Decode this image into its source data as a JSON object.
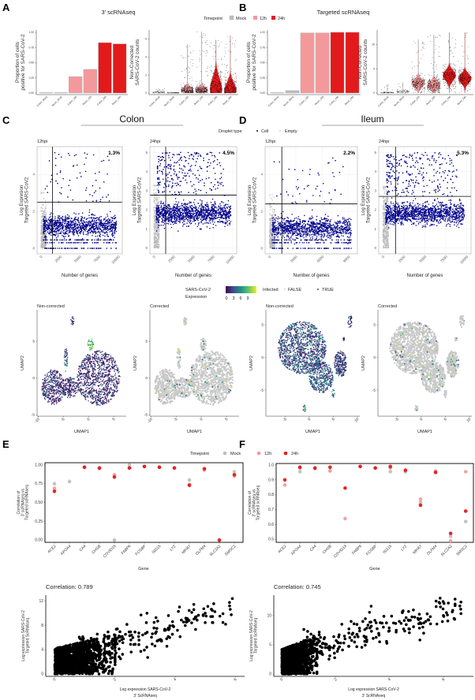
{
  "panel_labels": {
    "a": "A",
    "b": "B",
    "c": "C",
    "d": "D",
    "e": "E",
    "f": "F"
  },
  "colors": {
    "mock": "#bdbdbd",
    "h12": "#f4999b",
    "h24": "#e31a1c",
    "cell": "#00008b",
    "empty": "#bbbbbb",
    "umap_gray": "#c8c8c8",
    "black": "#000000"
  },
  "timepoint_legend": {
    "title": "Timepoint",
    "items": [
      "Mock",
      "12h",
      "24h"
    ]
  },
  "droplet_legend": {
    "title": "Droplet type",
    "items": [
      "Cell",
      "Empty"
    ]
  },
  "expression_legend": {
    "title_line1": "SARS-CoV-2",
    "title_line2": "Expression",
    "ticks": [
      "0",
      "3",
      "6",
      "9"
    ]
  },
  "infected_legend": {
    "title": "Infected",
    "items": [
      "FALSE",
      "TRUE"
    ]
  },
  "section_titles": {
    "colon": "Colon",
    "ileum": "Ileum"
  },
  "chart_data": [
    {
      "id": "A-bar",
      "type": "bar",
      "title": "3' scRNAseq",
      "ylabel": [
        "Proportion of cells",
        "positive for SARS-CoV-2"
      ],
      "ylim": [
        0,
        1
      ],
      "yticks": [
        "0.00",
        "0.25",
        "0.50",
        "0.75",
        "1.00"
      ],
      "categories": [
        "Colon_Mock",
        "Ileum_Mock",
        "Colon_12h",
        "Ileum_12h",
        "Colon_24h",
        "Ileum_24h"
      ],
      "timepoints": [
        "mock",
        "mock",
        "h12",
        "h12",
        "h24",
        "h24"
      ],
      "values": [
        0.005,
        0.005,
        0.27,
        0.39,
        0.83,
        0.81
      ]
    },
    {
      "id": "A-violin",
      "type": "violin",
      "ylabel": [
        "Non-Corrected",
        "SARS-CoV-2 counts"
      ],
      "ylim": [
        0,
        7
      ],
      "yticks": [
        0,
        2,
        4,
        6
      ],
      "categories": [
        "Colon_Mock",
        "Ileum_Mock",
        "Colon_12h",
        "Ileum_12h",
        "Colon_24h",
        "Ileum_24h"
      ],
      "timepoints": [
        "mock",
        "mock",
        "h12",
        "h12",
        "h24",
        "h24"
      ],
      "median": [
        0,
        0,
        0.3,
        0.3,
        0.4,
        0.3
      ],
      "spread": [
        0.1,
        0.02,
        0.3,
        0.3,
        1.2,
        0.8
      ],
      "max": [
        0.5,
        0.1,
        5.4,
        6.8,
        5.9,
        6.4
      ]
    },
    {
      "id": "B-bar",
      "type": "bar",
      "title": "Targeted scRNAseq",
      "ylabel": [
        "Proportion of cells",
        "positive for SARS-CoV-2"
      ],
      "ylim": [
        0,
        1
      ],
      "yticks": [
        "0.00",
        "0.25",
        "0.50",
        "0.75",
        "1.00"
      ],
      "categories": [
        "Colon_Mock",
        "Ileum_Mock",
        "Colon_12h",
        "Ileum_12h",
        "Colon_24h",
        "Ileum_24h"
      ],
      "timepoints": [
        "mock",
        "mock",
        "h12",
        "h12",
        "h24",
        "h24"
      ],
      "values": [
        0.005,
        0.04,
        0.99,
        0.99,
        1.0,
        1.0
      ]
    },
    {
      "id": "B-violin",
      "type": "violin",
      "ylabel": [
        "Non-Corrected",
        "SARS-CoV-2 counts"
      ],
      "ylim": [
        0,
        13
      ],
      "yticks": [
        0,
        5,
        10
      ],
      "categories": [
        "Colon_Mock",
        "Ileum_Mock",
        "Colon_12h",
        "Ileum_12h",
        "Colon_24h",
        "Ileum_24h"
      ],
      "timepoints": [
        "mock",
        "mock",
        "h12",
        "h12",
        "h24",
        "h24"
      ],
      "median": [
        0,
        0.2,
        2.0,
        1.6,
        3.6,
        3.0
      ],
      "spread": [
        0.1,
        0.2,
        0.8,
        0.8,
        1.0,
        0.9
      ],
      "max": [
        1.8,
        2.2,
        11,
        12,
        12.5,
        12.5
      ]
    },
    {
      "id": "C-12hpi",
      "type": "scatter",
      "title": "12hpi",
      "xlabel": "Number of genes",
      "ylabel": [
        "Log Expresion",
        "Targeted SARS-CoV2"
      ],
      "xlim": [
        -500,
        10500
      ],
      "ylim": [
        -0.3,
        5.5
      ],
      "xticks": [
        0,
        2500,
        5000,
        7500,
        10000
      ],
      "yticks": [
        0,
        2,
        4
      ],
      "vline": 1500,
      "hline": 2.5,
      "percent_label": "1.3%",
      "cell_y_center": 1.2,
      "high_cells": 70
    },
    {
      "id": "C-24hpi",
      "type": "scatter",
      "title": "24hpi",
      "xlabel": "Number of genes",
      "ylabel": [
        "Log Expresion",
        "Targeted SARS-CoV2"
      ],
      "xlim": [
        -500,
        10500
      ],
      "ylim": [
        -0.3,
        5.3
      ],
      "xticks": [
        0,
        2500,
        5000,
        7500,
        10000
      ],
      "yticks": [
        0,
        1,
        2,
        3,
        4,
        5
      ],
      "vline": 1500,
      "hline": 2.77,
      "percent_label": "4.5%",
      "cell_y_center": 1.8,
      "high_cells": 260
    },
    {
      "id": "D-12hpi",
      "type": "scatter",
      "title": "12hpi",
      "xlabel": "Number of genes",
      "ylabel": [
        "Log Expresion",
        "Targeted SARS-CoV2"
      ],
      "xlim": [
        -500,
        10000
      ],
      "ylim": [
        -0.3,
        5.5
      ],
      "xticks": [
        0,
        3000,
        6000,
        9000
      ],
      "yticks": [
        0,
        2,
        4
      ],
      "vline": 1400,
      "hline": 2.4,
      "percent_label": "2.2%",
      "cell_y_center": 1.1,
      "high_cells": 50
    },
    {
      "id": "D-24hpi",
      "type": "scatter",
      "title": "24hpi",
      "xlabel": "Number of genes",
      "ylabel": [
        "Log Expresion",
        "Targeted SARS-CoV2"
      ],
      "xlim": [
        -500,
        10500
      ],
      "ylim": [
        -0.3,
        5.3
      ],
      "xticks": [
        0,
        2500,
        5000,
        7500,
        10000
      ],
      "yticks": [
        0,
        1,
        2,
        3,
        4,
        5
      ],
      "vline": 1500,
      "hline": 2.7,
      "percent_label": "5.3%",
      "cell_y_center": 1.8,
      "high_cells": 280
    },
    {
      "id": "C-umap-noncorrected",
      "type": "scatter",
      "title": "Non-corrected",
      "xlabel": "UMAP1",
      "ylabel": "UMAP2",
      "xlim": [
        -10.2,
        7.5
      ],
      "ylim": [
        -5.2,
        9.3
      ],
      "xticks": [
        -10,
        -5,
        0,
        5
      ],
      "yticks": [
        -5,
        0,
        5
      ],
      "mode": "noncorrected",
      "clusters": [
        {
          "cx": 2,
          "cy": 0,
          "rx": 4.3,
          "ry": 3.7,
          "n": 900,
          "expr": 1.5
        },
        {
          "cx": -7,
          "cy": -1.2,
          "rx": 2.3,
          "ry": 2.4,
          "n": 380,
          "expr": 1.5
        },
        {
          "cx": -3.6,
          "cy": -1.3,
          "rx": 1.8,
          "ry": 1.4,
          "n": 180,
          "expr": 1.5
        },
        {
          "cx": -4.5,
          "cy": 2.5,
          "rx": 0.35,
          "ry": 1.6,
          "n": 40,
          "expr": 2.5
        },
        {
          "cx": -3.2,
          "cy": 7.8,
          "rx": 0.3,
          "ry": 0.6,
          "n": 20,
          "expr": 2.5
        },
        {
          "cx": 0.4,
          "cy": 4.6,
          "rx": 0.6,
          "ry": 0.8,
          "n": 50,
          "expr": 7
        }
      ]
    },
    {
      "id": "C-umap-corrected",
      "type": "scatter",
      "title": "Corrected",
      "xlabel": "UMAP1",
      "ylabel": "UMAP2",
      "xlim": [
        -10.2,
        7.5
      ],
      "ylim": [
        -5.2,
        9.3
      ],
      "xticks": [
        -10,
        -5,
        0,
        5
      ],
      "yticks": [
        -5,
        0,
        5
      ],
      "mode": "corrected",
      "infected_points": 70,
      "clusters": [
        {
          "cx": 2,
          "cy": 0,
          "rx": 4.3,
          "ry": 3.7,
          "n": 900,
          "expr": 1.5
        },
        {
          "cx": -7,
          "cy": -1.2,
          "rx": 2.3,
          "ry": 2.4,
          "n": 380,
          "expr": 1.5
        },
        {
          "cx": -3.6,
          "cy": -1.3,
          "rx": 1.8,
          "ry": 1.4,
          "n": 180,
          "expr": 1.5
        },
        {
          "cx": -4.5,
          "cy": 2.5,
          "rx": 0.35,
          "ry": 1.6,
          "n": 40,
          "expr": 2.5
        },
        {
          "cx": -3.2,
          "cy": 7.8,
          "rx": 0.3,
          "ry": 0.6,
          "n": 20,
          "expr": 2.5
        },
        {
          "cx": 0.4,
          "cy": 4.6,
          "rx": 0.6,
          "ry": 0.8,
          "n": 50,
          "expr": 7
        }
      ]
    },
    {
      "id": "D-umap-noncorrected",
      "type": "scatter",
      "title": "Non-corrected",
      "xlabel": "UMAP1",
      "ylabel": "UMAP2",
      "xlim": [
        -9,
        10.5
      ],
      "ylim": [
        -9,
        7.3
      ],
      "xticks": [
        -5,
        0,
        5,
        10
      ],
      "yticks": [
        -5,
        0,
        5
      ],
      "mode": "noncorrected",
      "clusters": [
        {
          "cx": -1.5,
          "cy": 1.5,
          "rx": 5,
          "ry": 4,
          "n": 1200,
          "expr": 2.5
        },
        {
          "cx": 2.5,
          "cy": -3,
          "rx": 2.5,
          "ry": 2.4,
          "n": 420,
          "expr": 3
        },
        {
          "cx": 6.5,
          "cy": -1,
          "rx": 1.3,
          "ry": 2,
          "n": 250,
          "expr": 2
        },
        {
          "cx": 8.5,
          "cy": 5.5,
          "rx": 0.5,
          "ry": 1,
          "n": 25,
          "expr": 2
        },
        {
          "cx": 7.2,
          "cy": 2.8,
          "rx": 0.2,
          "ry": 0.3,
          "n": 10,
          "expr": 1
        },
        {
          "cx": 5,
          "cy": -5.5,
          "rx": 0.3,
          "ry": 0.6,
          "n": 15,
          "expr": 4
        },
        {
          "cx": -1,
          "cy": -7.8,
          "rx": 0.3,
          "ry": 0.5,
          "n": 15,
          "expr": 4
        }
      ]
    },
    {
      "id": "D-umap-corrected",
      "type": "scatter",
      "title": "Corrected",
      "xlabel": "UMAP1",
      "ylabel": "UMAP2",
      "xlim": [
        -9,
        10.5
      ],
      "ylim": [
        -9,
        7.3
      ],
      "xticks": [
        -5,
        0,
        5,
        10
      ],
      "yticks": [
        -5,
        0,
        5
      ],
      "mode": "corrected",
      "infected_points": 80,
      "clusters": [
        {
          "cx": -1.5,
          "cy": 1.5,
          "rx": 5,
          "ry": 4,
          "n": 1200,
          "expr": 2.5
        },
        {
          "cx": 2.5,
          "cy": -3,
          "rx": 2.5,
          "ry": 2.4,
          "n": 420,
          "expr": 3
        },
        {
          "cx": 6.5,
          "cy": -1,
          "rx": 1.3,
          "ry": 2,
          "n": 250,
          "expr": 2
        },
        {
          "cx": 8.5,
          "cy": 5.5,
          "rx": 0.5,
          "ry": 1,
          "n": 25,
          "expr": 2
        },
        {
          "cx": 7.2,
          "cy": 2.8,
          "rx": 0.2,
          "ry": 0.3,
          "n": 10,
          "expr": 1
        },
        {
          "cx": 5,
          "cy": -5.5,
          "rx": 0.3,
          "ry": 0.6,
          "n": 15,
          "expr": 4
        },
        {
          "cx": -1,
          "cy": -7.8,
          "rx": 0.3,
          "ry": 0.5,
          "n": 15,
          "expr": 4
        }
      ]
    },
    {
      "id": "E-dot",
      "type": "scatter",
      "xlabel": "Gene",
      "ylabel": [
        "Correlation of",
        "3' scRNAseq vs",
        "Targeted scRNAseq"
      ],
      "ylim": [
        -0.03,
        1.03
      ],
      "yticks": [
        "0.00",
        "0.25",
        "0.50",
        "0.75",
        "1.00"
      ],
      "ytick_values": [
        0,
        0.25,
        0.5,
        0.75,
        1.0
      ],
      "categories": [
        "ACE2",
        "APOA4",
        "CA4",
        "CHGB",
        "COVID19",
        "FABP6",
        "FCGBP",
        "ISG15",
        "LYZ",
        "MKI67",
        "OLFM4",
        "SLC2A2",
        "SMOC2"
      ],
      "series": [
        {
          "name": "Mock",
          "color_key": "mock",
          "values": [
            0.75,
            0.78,
            null,
            null,
            0.0,
            1.0,
            null,
            null,
            null,
            0.8,
            null,
            null,
            0.91
          ]
        },
        {
          "name": "12h",
          "color_key": "h12",
          "values": [
            0.69,
            null,
            0.97,
            0.95,
            0.87,
            0.96,
            0.98,
            0.97,
            0.96,
            0.74,
            0.93,
            null,
            0.85
          ]
        },
        {
          "name": "24h",
          "color_key": "h24",
          "values": [
            0.65,
            null,
            0.97,
            0.96,
            0.84,
            0.96,
            0.98,
            0.97,
            0.96,
            0.73,
            0.95,
            0.0,
            0.87
          ]
        }
      ]
    },
    {
      "id": "F-dot",
      "type": "scatter",
      "xlabel": "Gene",
      "ylabel": [
        "Correlation of",
        "3' scRNAseq vs",
        "Targeted scRNAseq"
      ],
      "ylim": [
        0.48,
        1.01
      ],
      "yticks": [
        "0.5",
        "0.6",
        "0.7",
        "0.8",
        "0.9",
        "1.0"
      ],
      "ytick_values": [
        0.5,
        0.6,
        0.7,
        0.8,
        0.9,
        1.0
      ],
      "categories": [
        "ACE2",
        "APOA4",
        "CA4",
        "CHGB",
        "COVID19",
        "FABP6",
        "FCGBP",
        "ISG15",
        "LYZ",
        "MKI67",
        "OLFM4",
        "SLC2A2",
        "SMOC2"
      ],
      "series": [
        {
          "name": "Mock",
          "color_key": "mock",
          "values": [
            null,
            0.955,
            null,
            0.96,
            null,
            null,
            null,
            0.955,
            0.955,
            0.75,
            0.96,
            0.52,
            0.62
          ]
        },
        {
          "name": "12h",
          "color_key": "h12",
          "values": [
            0.865,
            0.98,
            0.975,
            0.96,
            0.64,
            0.99,
            0.98,
            0.98,
            0.96,
            0.77,
            0.955,
            0.49,
            0.955
          ]
        },
        {
          "name": "24h",
          "color_key": "h24",
          "values": [
            0.9,
            0.985,
            0.98,
            0.985,
            0.845,
            0.99,
            0.98,
            0.99,
            0.965,
            0.73,
            0.95,
            0.54,
            0.69
          ]
        }
      ]
    },
    {
      "id": "E-corr",
      "type": "scatter",
      "title": "Correlation: 0.789",
      "xlabel": [
        "Log expression SARS-CoV-2",
        "3' ScRNAseq"
      ],
      "ylabel": [
        "Log expression SARS-CoV-2",
        "Targeted ScRNAseq"
      ],
      "xlim": [
        -0.3,
        6.3
      ],
      "ylim": [
        -0.4,
        13
      ],
      "xticks": [
        0,
        2,
        4,
        6
      ],
      "yticks": [
        0,
        4,
        8,
        12
      ],
      "correlation": 0.789,
      "cloud_xmax": 2.0,
      "cloud_ymax": 6,
      "trend": [
        2.0,
        1.5
      ]
    },
    {
      "id": "F-corr",
      "type": "scatter",
      "title": "Correlation: 0.745",
      "xlabel": [
        "Log expression SARS-CoV-2",
        "3' ScRNAseq"
      ],
      "ylabel": [
        "Log expression SARS-CoV-2",
        "Targeted ScRNAseq"
      ],
      "xlim": [
        -0.3,
        7.1
      ],
      "ylim": [
        -0.4,
        13.5
      ],
      "xticks": [
        0,
        2,
        4,
        6
      ],
      "yticks": [
        0,
        5,
        10
      ],
      "correlation": 0.745,
      "cloud_xmax": 1.3,
      "cloud_ymax": 6,
      "trend": [
        3.0,
        1.3
      ]
    }
  ]
}
